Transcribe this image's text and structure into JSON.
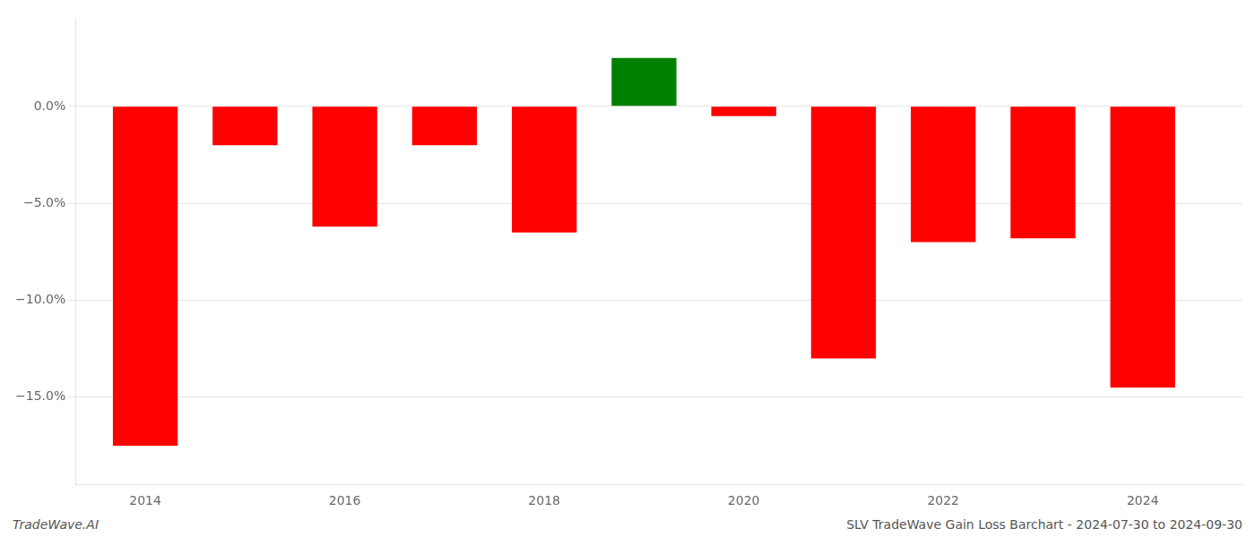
{
  "chart_data": {
    "type": "bar",
    "x": [
      2014,
      2015,
      2016,
      2017,
      2018,
      2019,
      2020,
      2021,
      2022,
      2023,
      2024
    ],
    "values": [
      -17.5,
      -2.0,
      -6.2,
      -2.0,
      -6.5,
      2.5,
      -0.5,
      -13.0,
      -7.0,
      -6.8,
      -14.5
    ],
    "colors": [
      "#ff0000",
      "#ff0000",
      "#ff0000",
      "#ff0000",
      "#ff0000",
      "#008000",
      "#ff0000",
      "#ff0000",
      "#ff0000",
      "#ff0000",
      "#ff0000"
    ],
    "xlim": [
      2013.3,
      2025.0
    ],
    "xticks": [
      2014,
      2016,
      2018,
      2020,
      2022,
      2024
    ],
    "ylim": [
      -19.5,
      4.5
    ],
    "yticks": [
      {
        "value": 0.0,
        "label": "0.0%"
      },
      {
        "value": -5.0,
        "label": "−5.0%"
      },
      {
        "value": -10.0,
        "label": "−10.0%"
      },
      {
        "value": -15.0,
        "label": "−15.0%"
      }
    ],
    "grid": true,
    "annotations": [
      "TradeWave.AI",
      "SLV TradeWave Gain Loss Barchart - 2024-07-30 to 2024-09-30"
    ]
  }
}
